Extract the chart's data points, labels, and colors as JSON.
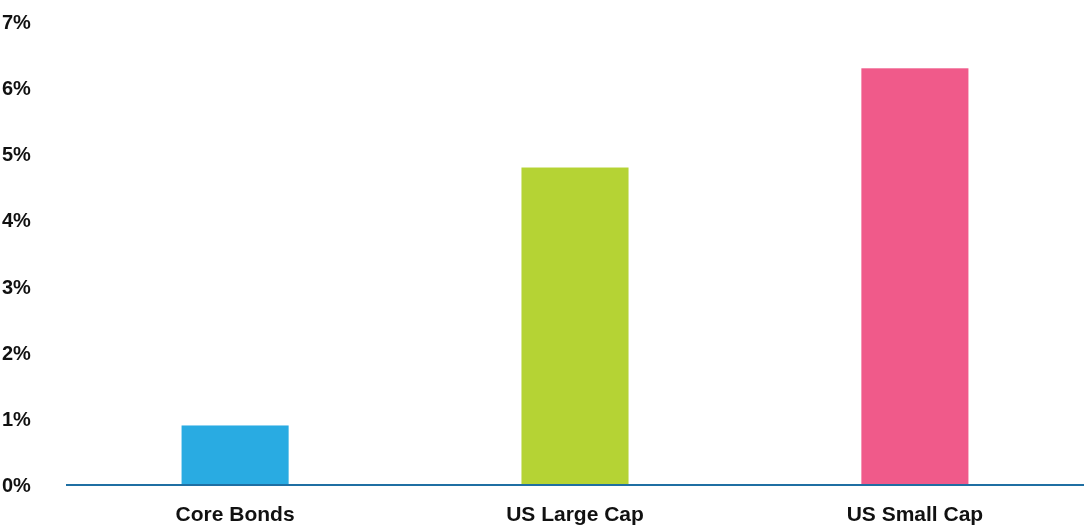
{
  "chart_data": {
    "type": "bar",
    "categories": [
      "Core Bonds",
      "US Large Cap",
      "US Small Cap"
    ],
    "values": [
      0.9,
      4.8,
      6.3
    ],
    "colors": [
      "#29abe2",
      "#b5d334",
      "#f05a8a"
    ],
    "ylim": [
      0,
      7
    ],
    "yticks": [
      {
        "value": 0,
        "label": "0%"
      },
      {
        "value": 1,
        "label": "1%"
      },
      {
        "value": 2,
        "label": "2%"
      },
      {
        "value": 3,
        "label": "3%"
      },
      {
        "value": 4,
        "label": "4%"
      },
      {
        "value": 5,
        "label": "5%"
      },
      {
        "value": 6,
        "label": "6%"
      },
      {
        "value": 7,
        "label": "7%"
      }
    ],
    "grid": false
  }
}
